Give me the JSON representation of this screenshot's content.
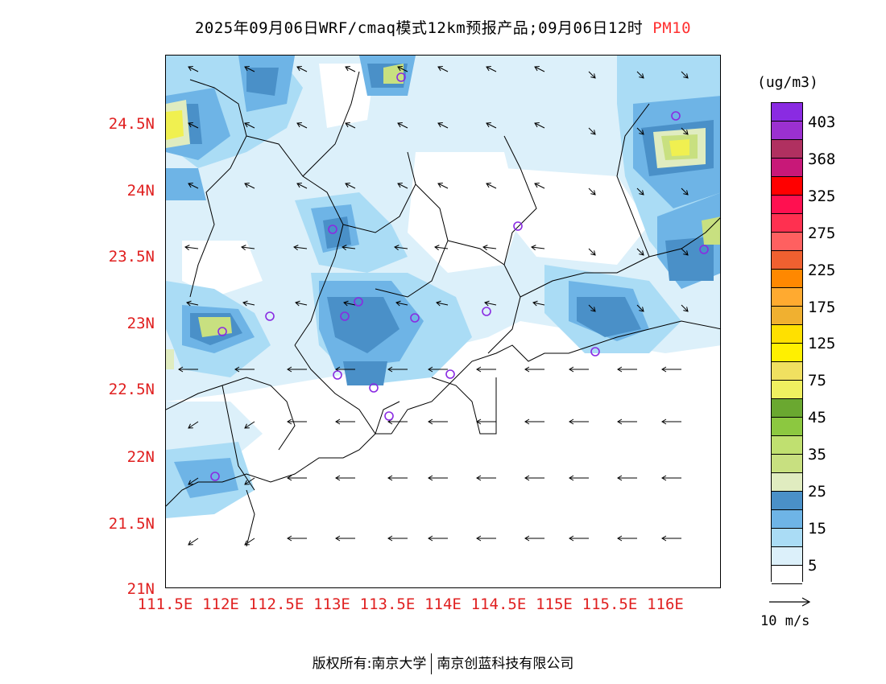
{
  "title": {
    "main": "2025年09月06日WRF/cmaq模式12km预报产品;09月06日12时",
    "variable": "PM10"
  },
  "map": {
    "y_axis_labels": [
      "24.5N",
      "24N",
      "23.5N",
      "23N",
      "22.5N",
      "22N",
      "21.5N",
      "21N"
    ],
    "x_axis_labels": [
      "111.5E",
      "112E",
      "112.5E",
      "113E",
      "113.5E",
      "114E",
      "114.5E",
      "115E",
      "115.5E",
      "116E"
    ],
    "colors": {
      "c0": "#ffffff",
      "c5": "#dcf0fa",
      "c10": "#aadcf5",
      "c15": "#6eb4e6",
      "c20": "#4a90c8",
      "c25": "#e0ecc0",
      "c30": "#c8e080",
      "c45": "#f0f050",
      "border": "#000000",
      "wind": "#000000",
      "site": "#8a2be2"
    }
  },
  "legend": {
    "unit": "(ug/m3)",
    "colors": [
      "#8a2be2",
      "#9b30d0",
      "#b03060",
      "#c81878",
      "#ff0000",
      "#ff1050",
      "#ff3050",
      "#ff6060",
      "#f06030",
      "#ff8800",
      "#ffaa30",
      "#f0b030",
      "#ffe000",
      "#fff000",
      "#f0e060",
      "#f0f060",
      "#6aa830",
      "#8cc840",
      "#c0e070",
      "#c8e080",
      "#e0ecc0",
      "#4a90c8",
      "#6eb4e6",
      "#aadcf5",
      "#dcf0fa",
      "#ffffff"
    ],
    "labels": [
      "403",
      "368",
      "325",
      "275",
      "225",
      "175",
      "125",
      "75",
      "45",
      "35",
      "25",
      "15",
      "5"
    ]
  },
  "wind_key": {
    "label": "10 m/s"
  },
  "footer": {
    "owner": "版权所有:南京大学",
    "partner": "南京创蓝科技有限公司"
  }
}
